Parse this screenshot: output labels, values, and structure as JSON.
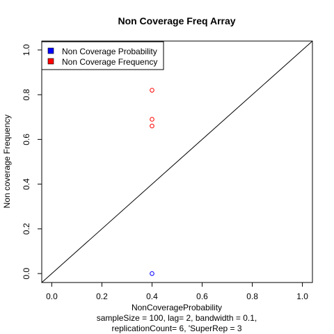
{
  "chart_data": {
    "type": "scatter",
    "title": "Non Coverage Freq Array",
    "xlabel": "NonCoverageProbability",
    "ylabel": "Non coverage Frequency",
    "subtitle_lines": [
      "sampleSize = 100, lag= 2, bandwidth = 0.1,",
      "replicationCount= 6, 'SuperRep = 3"
    ],
    "xlim": [
      -0.04,
      1.04
    ],
    "ylim": [
      -0.04,
      1.04
    ],
    "x_ticks": [
      0.0,
      0.2,
      0.4,
      0.6,
      0.8,
      1.0
    ],
    "y_ticks": [
      0.0,
      0.2,
      0.4,
      0.6,
      0.8,
      1.0
    ],
    "x_tick_labels": [
      "0.0",
      "0.2",
      "0.4",
      "0.6",
      "0.8",
      "1.0"
    ],
    "y_tick_labels": [
      "0.0",
      "0.2",
      "0.4",
      "0.6",
      "0.8",
      "1.0"
    ],
    "reference_line": {
      "type": "identity",
      "from": [
        -0.04,
        -0.04
      ],
      "to": [
        1.04,
        1.04
      ]
    },
    "legend_position": "top-left",
    "series": [
      {
        "name": "Non Coverage Probability",
        "color": "#0000ff",
        "marker": "open-circle",
        "points": [
          {
            "x": 0.4,
            "y": 0.0
          }
        ]
      },
      {
        "name": "Non Coverage Frequency",
        "color": "#ff0000",
        "marker": "open-circle",
        "points": [
          {
            "x": 0.4,
            "y": 0.82
          },
          {
            "x": 0.4,
            "y": 0.69
          },
          {
            "x": 0.4,
            "y": 0.66
          }
        ]
      }
    ],
    "legend": [
      {
        "label": "Non Coverage Probability",
        "color": "#0000ff"
      },
      {
        "label": "Non Coverage Frequency",
        "color": "#ff0000"
      }
    ]
  }
}
